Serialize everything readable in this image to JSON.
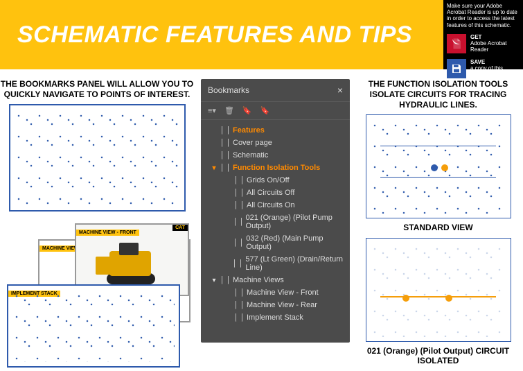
{
  "header": {
    "title": "SCHEMATIC FEATURES AND TIPS",
    "warning": "Make sure your Adobe Acrobat Reader is up to date in order to access the latest features of this schematic.",
    "actions": {
      "get": {
        "line1": "GET",
        "line2": "Adobe Acrobat Reader"
      },
      "save": {
        "line1": "SAVE",
        "line2": "a copy of this schematic"
      }
    }
  },
  "left": {
    "heading": "THE BOOKMARKS PANEL WILL ALLOW YOU TO QUICKLY NAVIGATE TO POINTS OF INTEREST.",
    "thumb_labels": {
      "front": "MACHINE VIEW - FRONT",
      "rear": "MACHINE VIEW - REAR",
      "impl": "IMPLEMENT STACK",
      "cat": "CAT"
    }
  },
  "bookmarks": {
    "title": "Bookmarks",
    "toolbar": {
      "list": "≡▾",
      "trash": "🗑",
      "add": "🔖",
      "addchild": "🔖"
    },
    "items": [
      {
        "label": "Features",
        "hot": true,
        "level": 0,
        "caret": ""
      },
      {
        "label": "Cover page",
        "hot": false,
        "level": 0,
        "caret": ""
      },
      {
        "label": "Schematic",
        "hot": false,
        "level": 0,
        "caret": ""
      },
      {
        "label": "Function Isolation Tools",
        "hot": true,
        "level": 0,
        "caret": "▾"
      },
      {
        "label": "Grids On/Off",
        "hot": false,
        "level": 1,
        "caret": ""
      },
      {
        "label": "All Circuits Off",
        "hot": false,
        "level": 1,
        "caret": ""
      },
      {
        "label": "All Circuits On",
        "hot": false,
        "level": 1,
        "caret": ""
      },
      {
        "label": "021 (Orange) (Pilot Pump Output)",
        "hot": false,
        "level": 1,
        "caret": ""
      },
      {
        "label": "032 (Red) (Main Pump Output)",
        "hot": false,
        "level": 1,
        "caret": ""
      },
      {
        "label": "577 (Lt Green) (Drain/Return Line)",
        "hot": false,
        "level": 1,
        "caret": ""
      },
      {
        "label": "Machine Views",
        "hot": false,
        "level": 0,
        "caret": "▾"
      },
      {
        "label": "Machine View - Front",
        "hot": false,
        "level": 1,
        "caret": ""
      },
      {
        "label": "Machine View - Rear",
        "hot": false,
        "level": 1,
        "caret": ""
      },
      {
        "label": "Implement Stack",
        "hot": false,
        "level": 1,
        "caret": ""
      }
    ]
  },
  "right": {
    "heading": "THE FUNCTION ISOLATION TOOLS ISOLATE CIRCUITS FOR TRACING HYDRAULIC LINES.",
    "caption1": "STANDARD VIEW",
    "caption2": "021 (Orange) (Pilot Output) CIRCUIT ISOLATED"
  },
  "colors": {
    "brand_yellow": "#ffc20e",
    "pdf_red": "#c8102e",
    "save_blue": "#2e5aac",
    "panel_gray": "#4b4b4b",
    "hot_orange": "#ff8a00"
  }
}
